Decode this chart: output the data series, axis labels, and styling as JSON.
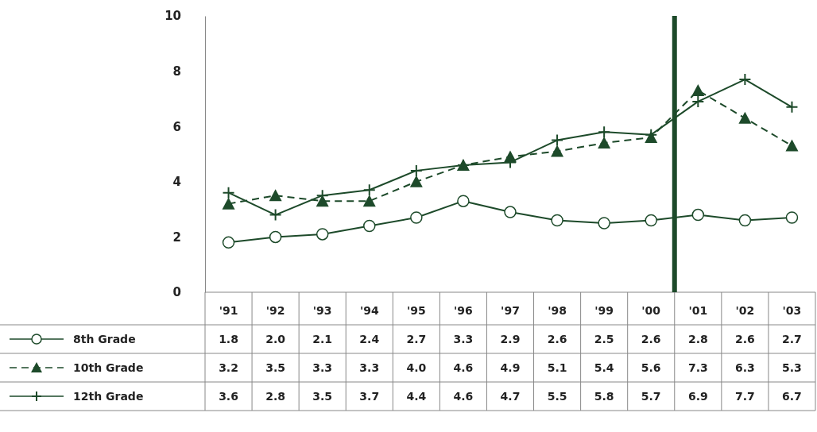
{
  "chart_data": {
    "type": "line",
    "categories": [
      "'91",
      "'92",
      "'93",
      "'94",
      "'95",
      "'96",
      "'97",
      "'98",
      "'99",
      "'00",
      "'01",
      "'02",
      "'03"
    ],
    "series": [
      {
        "name": "8th Grade",
        "color": "#1d4a2a",
        "marker": "circle",
        "line_style": "solid",
        "values": [
          1.8,
          2.0,
          2.1,
          2.4,
          2.7,
          3.3,
          2.9,
          2.6,
          2.5,
          2.6,
          2.8,
          2.6,
          2.7
        ],
        "value_labels": [
          "1.8",
          "2.0",
          "2.1",
          "2.4",
          "2.7",
          "3.3",
          "2.9",
          "2.6",
          "2.5",
          "2.6",
          "2.8",
          "2.6",
          "2.7"
        ]
      },
      {
        "name": "10th Grade",
        "color": "#1d4a2a",
        "marker": "triangle",
        "line_style": "dashed",
        "values": [
          3.2,
          3.5,
          3.3,
          3.3,
          4.0,
          4.6,
          4.9,
          5.1,
          5.4,
          5.6,
          7.3,
          6.3,
          5.3
        ],
        "value_labels": [
          "3.2",
          "3.5",
          "3.3",
          "3.3",
          "4.0",
          "4.6",
          "4.9",
          "5.1",
          "5.4",
          "5.6",
          "7.3",
          "6.3",
          "5.3"
        ]
      },
      {
        "name": "12th Grade",
        "color": "#1d4a2a",
        "marker": "cross",
        "line_style": "solid",
        "values": [
          3.6,
          2.8,
          3.5,
          3.7,
          4.4,
          4.6,
          4.7,
          5.5,
          5.8,
          5.7,
          6.9,
          7.7,
          6.7
        ],
        "value_labels": [
          "3.6",
          "2.8",
          "3.5",
          "3.7",
          "4.4",
          "4.6",
          "4.7",
          "5.5",
          "5.8",
          "5.7",
          "6.9",
          "7.7",
          "6.7"
        ]
      }
    ],
    "ylim": [
      0,
      10
    ],
    "yticks": [
      0,
      2,
      4,
      6,
      8,
      10
    ],
    "grid": false,
    "legend": "bottom",
    "ref_lines": [
      {
        "axis": "x",
        "value": "'01",
        "color": "#1d4a2a",
        "line_style": "solid"
      }
    ]
  }
}
